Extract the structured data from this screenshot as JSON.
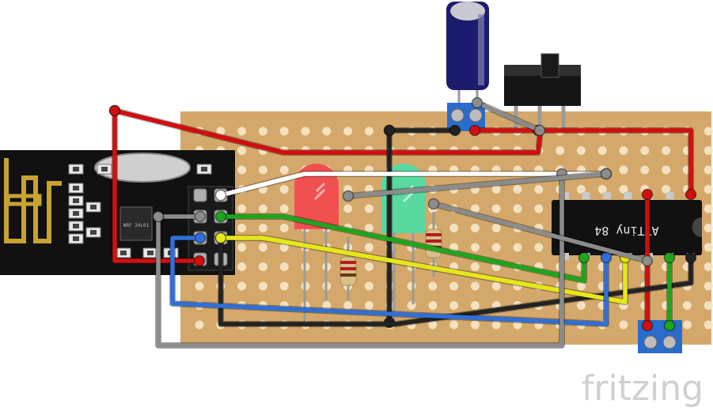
{
  "watermark": "fritzing",
  "chip": {
    "label": "ATTiny 84"
  },
  "radio_module": {
    "chip_marking": "NRF 24L01"
  },
  "colors": {
    "board": "#d4a86a",
    "hole": "#f3e1bf",
    "wire_red": "#d10f0f",
    "wire_black": "#222222",
    "wire_green": "#1ea51e",
    "wire_yellow": "#e6e61a",
    "wire_blue": "#2f6fd6",
    "wire_white": "#ffffff",
    "wire_grey": "#8c8c8c",
    "pcb_black": "#111111",
    "antenna_gold": "#c8a232",
    "led_red": "#f05050",
    "led_green": "#59d8a0",
    "terminal_blue": "#2a6ccc",
    "capacitor": "#1c1c6e",
    "switch": "#151515"
  }
}
